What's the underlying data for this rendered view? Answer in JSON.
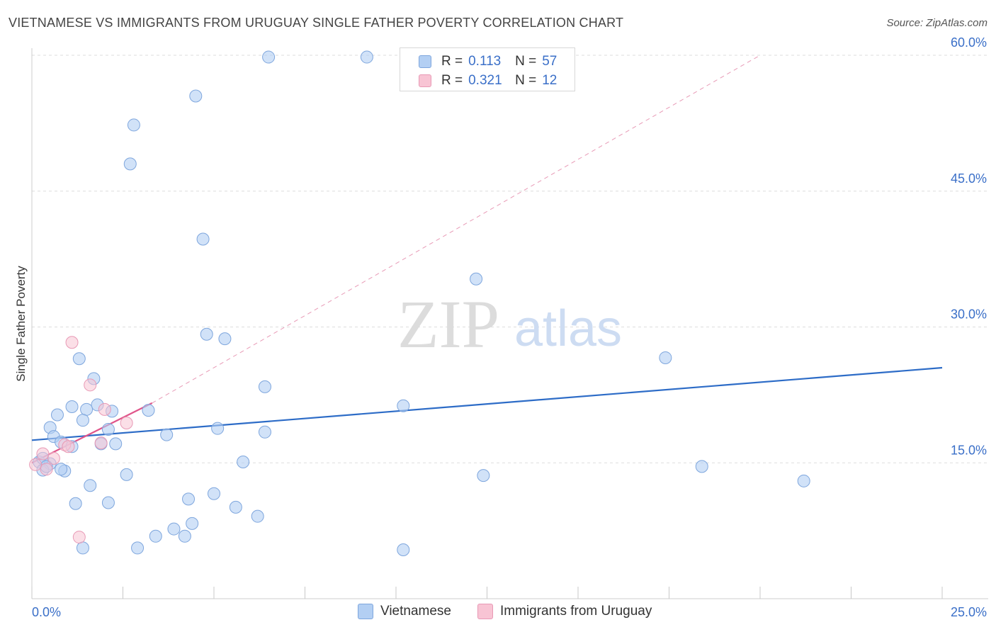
{
  "title": "VIETNAMESE VS IMMIGRANTS FROM URUGUAY SINGLE FATHER POVERTY CORRELATION CHART",
  "source": "Source: ZipAtlas.com",
  "watermark": {
    "zip": "ZIP",
    "atlas": "atlas"
  },
  "legend": {
    "rows": [
      {
        "r_label": "R =",
        "r_value": "0.113",
        "n_label": "N =",
        "n_value": "57"
      },
      {
        "r_label": "R =",
        "r_value": "0.321",
        "n_label": "N =",
        "n_value": "12"
      }
    ]
  },
  "bottom_legend": {
    "series1": "Vietnamese",
    "series2": "Immigrants from Uruguay"
  },
  "colors": {
    "blue_fill": "#b3cff3",
    "blue_stroke": "#7ea6dd",
    "blue_line": "#2d6cc7",
    "pink_fill": "#f8c4d4",
    "pink_stroke": "#e899b5",
    "pink_line": "#e0558a",
    "tick_label": "#3a6fc8",
    "grid": "#dddddd"
  },
  "chart_data": {
    "type": "scatter",
    "title": "VIETNAMESE VS IMMIGRANTS FROM URUGUAY SINGLE FATHER POVERTY CORRELATION CHART",
    "xlabel": "",
    "ylabel": "Single Father Poverty",
    "xlim": [
      0,
      25
    ],
    "ylim": [
      0,
      60
    ],
    "x_tick_labels": [
      {
        "value": 0,
        "label": "0.0%"
      },
      {
        "value": 25,
        "label": "25.0%"
      }
    ],
    "y_tick_labels": [
      {
        "value": 15,
        "label": "15.0%"
      },
      {
        "value": 30,
        "label": "30.0%"
      },
      {
        "value": 45,
        "label": "45.0%"
      },
      {
        "value": 60,
        "label": "60.0%"
      }
    ],
    "x_minor_ticks": [
      0,
      2.5,
      5,
      7.5,
      10,
      12.5,
      15,
      17.5,
      20,
      22.5,
      25
    ],
    "series": [
      {
        "name": "Vietnamese",
        "R": 0.113,
        "N": 57,
        "trend": {
          "x0": 0,
          "y0": 17.5,
          "x1": 25,
          "y1": 25.5
        },
        "points": [
          [
            6.5,
            59.8
          ],
          [
            9.2,
            59.8
          ],
          [
            4.5,
            55.5
          ],
          [
            2.8,
            52.3
          ],
          [
            2.7,
            48.0
          ],
          [
            4.7,
            39.7
          ],
          [
            12.2,
            35.3
          ],
          [
            4.8,
            29.2
          ],
          [
            5.3,
            28.7
          ],
          [
            1.3,
            26.5
          ],
          [
            17.4,
            26.6
          ],
          [
            1.7,
            24.3
          ],
          [
            6.4,
            23.4
          ],
          [
            10.2,
            21.3
          ],
          [
            1.8,
            21.4
          ],
          [
            1.1,
            21.2
          ],
          [
            1.5,
            20.9
          ],
          [
            2.2,
            20.7
          ],
          [
            3.2,
            20.8
          ],
          [
            0.7,
            20.3
          ],
          [
            1.4,
            19.7
          ],
          [
            0.5,
            18.9
          ],
          [
            2.1,
            18.7
          ],
          [
            5.1,
            18.8
          ],
          [
            6.4,
            18.4
          ],
          [
            3.7,
            18.1
          ],
          [
            0.6,
            17.9
          ],
          [
            0.8,
            17.3
          ],
          [
            1.9,
            17.1
          ],
          [
            2.3,
            17.1
          ],
          [
            1.1,
            16.8
          ],
          [
            0.2,
            15.1
          ],
          [
            0.5,
            14.9
          ],
          [
            0.3,
            14.2
          ],
          [
            0.9,
            14.1
          ],
          [
            0.8,
            14.3
          ],
          [
            5.8,
            15.1
          ],
          [
            2.6,
            13.7
          ],
          [
            12.4,
            13.6
          ],
          [
            18.4,
            14.6
          ],
          [
            21.2,
            13.0
          ],
          [
            1.6,
            12.5
          ],
          [
            5.0,
            11.6
          ],
          [
            4.3,
            11.0
          ],
          [
            2.1,
            10.6
          ],
          [
            1.2,
            10.5
          ],
          [
            5.6,
            10.1
          ],
          [
            6.2,
            9.1
          ],
          [
            4.4,
            8.3
          ],
          [
            3.9,
            7.7
          ],
          [
            3.4,
            6.9
          ],
          [
            4.2,
            6.9
          ],
          [
            1.4,
            5.6
          ],
          [
            2.9,
            5.6
          ],
          [
            10.2,
            5.4
          ],
          [
            0.3,
            15.5
          ],
          [
            0.4,
            14.6
          ]
        ]
      },
      {
        "name": "Immigrants from Uruguay",
        "R": 0.321,
        "N": 12,
        "trend": {
          "x0": 0,
          "y0": 15.0,
          "x1": 3.3,
          "y1": 21.6
        },
        "trend_extension": {
          "x0": 3.3,
          "y0": 21.6,
          "x1": 20.0,
          "y1": 60.0
        },
        "points": [
          [
            1.1,
            28.3
          ],
          [
            1.6,
            23.6
          ],
          [
            2.0,
            20.9
          ],
          [
            2.6,
            19.4
          ],
          [
            1.9,
            17.2
          ],
          [
            0.9,
            17.0
          ],
          [
            1.0,
            16.8
          ],
          [
            0.3,
            16.0
          ],
          [
            0.6,
            15.5
          ],
          [
            0.4,
            14.3
          ],
          [
            0.1,
            14.8
          ],
          [
            1.3,
            6.8
          ]
        ]
      }
    ]
  }
}
